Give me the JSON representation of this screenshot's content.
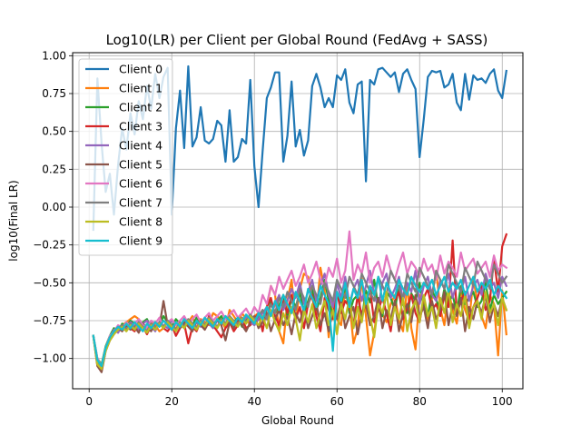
{
  "chart_data": {
    "type": "line",
    "title": "Log10(LR) per Client per Global Round (FedAvg + SASS)",
    "xlabel": "Global Round",
    "ylabel": "log10(Final LR)",
    "xlim": [
      -4,
      105
    ],
    "ylim": [
      -1.2,
      1.02
    ],
    "xticks": [
      0,
      20,
      40,
      60,
      80,
      100
    ],
    "yticks": [
      -1.0,
      -0.75,
      -0.5,
      -0.25,
      0.0,
      0.25,
      0.5,
      0.75,
      1.0
    ],
    "xtick_labels": [
      "0",
      "20",
      "40",
      "60",
      "80",
      "100"
    ],
    "ytick_labels": [
      "−1.00",
      "−0.75",
      "−0.50",
      "−0.25",
      "0.00",
      "0.25",
      "0.50",
      "0.75",
      "1.00"
    ],
    "grid": true,
    "legend_position": "top-left",
    "x_start": 1,
    "series": [
      {
        "name": "Client 0",
        "color": "#1f77b4",
        "values": [
          -0.15,
          0.85,
          0.42,
          0.1,
          0.22,
          -0.05,
          0.28,
          0.52,
          0.38,
          0.62,
          0.48,
          0.7,
          0.58,
          0.8,
          0.65,
          0.88,
          0.72,
          0.86,
          0.92,
          -0.05,
          0.52,
          0.77,
          0.39,
          0.93,
          0.4,
          0.46,
          0.66,
          0.44,
          0.42,
          0.45,
          0.57,
          0.54,
          0.3,
          0.64,
          0.3,
          0.33,
          0.45,
          0.42,
          0.84,
          0.27,
          0.0,
          0.37,
          0.72,
          0.79,
          0.89,
          0.89,
          0.3,
          0.47,
          0.83,
          0.4,
          0.51,
          0.34,
          0.44,
          0.8,
          0.88,
          0.79,
          0.66,
          0.72,
          0.66,
          0.87,
          0.84,
          0.91,
          0.69,
          0.62,
          0.81,
          0.83,
          0.17,
          0.84,
          0.81,
          0.91,
          0.92,
          0.89,
          0.86,
          0.89,
          0.76,
          0.88,
          0.91,
          0.84,
          0.78,
          0.33,
          0.58,
          0.86,
          0.9,
          0.89,
          0.9,
          0.79,
          0.81,
          0.88,
          0.69,
          0.64,
          0.88,
          0.71,
          0.87,
          0.84,
          0.85,
          0.82,
          0.88,
          0.91,
          0.77,
          0.72,
          0.9
        ]
      },
      {
        "name": "Client 1",
        "color": "#ff7f0e",
        "values": [
          -0.85,
          -1.05,
          -1.08,
          -0.95,
          -0.88,
          -0.82,
          -0.8,
          -0.78,
          -0.76,
          -0.74,
          -0.72,
          -0.74,
          -0.78,
          -0.8,
          -0.76,
          -0.78,
          -0.82,
          -0.8,
          -0.75,
          -0.78,
          -0.8,
          -0.77,
          -0.79,
          -0.76,
          -0.72,
          -0.8,
          -0.74,
          -0.76,
          -0.78,
          -0.7,
          -0.72,
          -0.75,
          -0.8,
          -0.68,
          -0.72,
          -0.76,
          -0.7,
          -0.74,
          -0.78,
          -0.72,
          -0.7,
          -0.74,
          -0.66,
          -0.52,
          -0.58,
          -0.82,
          -0.9,
          -0.62,
          -0.48,
          -0.76,
          -0.54,
          -0.44,
          -0.46,
          -0.6,
          -0.72,
          -0.4,
          -0.55,
          -0.86,
          -0.62,
          -0.74,
          -0.78,
          -0.52,
          -0.63,
          -0.9,
          -0.8,
          -0.47,
          -0.72,
          -0.98,
          -0.83,
          -0.62,
          -0.71,
          -0.76,
          -0.64,
          -0.58,
          -0.75,
          -0.82,
          -0.51,
          -0.8,
          -0.94,
          -0.58,
          -0.62,
          -0.76,
          -0.6,
          -0.42,
          -0.67,
          -0.78,
          -0.55,
          -0.68,
          -0.77,
          -0.55,
          -0.68,
          -0.75,
          -0.48,
          -0.62,
          -0.72,
          -0.8,
          -0.58,
          -0.64,
          -0.98,
          -0.55,
          -0.84
        ]
      },
      {
        "name": "Client 2",
        "color": "#2ca02c",
        "values": [
          -0.85,
          -1.0,
          -1.04,
          -0.92,
          -0.85,
          -0.8,
          -0.82,
          -0.77,
          -0.79,
          -0.75,
          -0.77,
          -0.79,
          -0.76,
          -0.74,
          -0.8,
          -0.76,
          -0.78,
          -0.72,
          -0.76,
          -0.79,
          -0.74,
          -0.77,
          -0.8,
          -0.75,
          -0.78,
          -0.73,
          -0.76,
          -0.79,
          -0.74,
          -0.77,
          -0.75,
          -0.72,
          -0.78,
          -0.74,
          -0.76,
          -0.73,
          -0.79,
          -0.75,
          -0.72,
          -0.78,
          -0.72,
          -0.68,
          -0.74,
          -0.62,
          -0.7,
          -0.65,
          -0.58,
          -0.72,
          -0.6,
          -0.66,
          -0.56,
          -0.7,
          -0.62,
          -0.54,
          -0.68,
          -0.6,
          -0.48,
          -0.62,
          -0.72,
          -0.56,
          -0.64,
          -0.52,
          -0.7,
          -0.61,
          -0.58,
          -0.74,
          -0.55,
          -0.63,
          -0.48,
          -0.66,
          -0.72,
          -0.56,
          -0.6,
          -0.68,
          -0.52,
          -0.64,
          -0.7,
          -0.57,
          -0.62,
          -0.5,
          -0.66,
          -0.72,
          -0.55,
          -0.61,
          -0.68,
          -0.54,
          -0.63,
          -0.58,
          -0.7,
          -0.52,
          -0.64,
          -0.6,
          -0.56,
          -0.66,
          -0.62,
          -0.5,
          -0.68,
          -0.58,
          -0.64,
          -0.6,
          -0.56
        ]
      },
      {
        "name": "Client 3",
        "color": "#d62728",
        "values": [
          -0.85,
          -1.02,
          -1.06,
          -0.94,
          -0.86,
          -0.83,
          -0.79,
          -0.81,
          -0.77,
          -0.8,
          -0.82,
          -0.76,
          -0.79,
          -0.84,
          -0.78,
          -0.81,
          -0.76,
          -0.8,
          -0.82,
          -0.78,
          -0.85,
          -0.8,
          -0.77,
          -0.9,
          -0.79,
          -0.82,
          -0.75,
          -0.8,
          -0.72,
          -0.78,
          -0.82,
          -0.86,
          -0.8,
          -0.76,
          -0.82,
          -0.78,
          -0.74,
          -0.8,
          -0.78,
          -0.74,
          -0.7,
          -0.82,
          -0.66,
          -0.6,
          -0.72,
          -0.78,
          -0.62,
          -0.7,
          -0.58,
          -0.74,
          -0.66,
          -0.8,
          -0.64,
          -0.58,
          -0.72,
          -0.82,
          -0.6,
          -0.68,
          -0.74,
          -0.56,
          -0.7,
          -0.62,
          -0.66,
          -0.78,
          -0.58,
          -0.72,
          -0.64,
          -0.54,
          -0.76,
          -0.68,
          -0.6,
          -0.7,
          -0.82,
          -0.62,
          -0.56,
          -0.74,
          -0.66,
          -0.58,
          -0.7,
          -0.76,
          -0.6,
          -0.54,
          -0.68,
          -0.64,
          -0.72,
          -0.58,
          -0.66,
          -0.22,
          -0.7,
          -0.62,
          -0.56,
          -0.74,
          -0.66,
          -0.6,
          -0.52,
          -0.68,
          -0.62,
          -0.34,
          -0.56,
          -0.26,
          -0.18
        ]
      },
      {
        "name": "Client 4",
        "color": "#9467bd",
        "values": [
          -0.85,
          -1.03,
          -1.05,
          -0.93,
          -0.87,
          -0.81,
          -0.83,
          -0.78,
          -0.8,
          -0.76,
          -0.78,
          -0.81,
          -0.77,
          -0.75,
          -0.79,
          -0.82,
          -0.76,
          -0.78,
          -0.8,
          -0.75,
          -0.77,
          -0.79,
          -0.74,
          -0.78,
          -0.81,
          -0.76,
          -0.79,
          -0.73,
          -0.77,
          -0.8,
          -0.75,
          -0.78,
          -0.72,
          -0.76,
          -0.79,
          -0.74,
          -0.77,
          -0.72,
          -0.76,
          -0.78,
          -0.74,
          -0.7,
          -0.66,
          -0.72,
          -0.64,
          -0.58,
          -0.68,
          -0.62,
          -0.54,
          -0.6,
          -0.5,
          -0.64,
          -0.56,
          -0.48,
          -0.62,
          -0.52,
          -0.44,
          -0.58,
          -0.66,
          -0.5,
          -0.6,
          -0.46,
          -0.64,
          -0.54,
          -0.48,
          -0.62,
          -0.52,
          -0.42,
          -0.58,
          -0.66,
          -0.5,
          -0.44,
          -0.6,
          -0.54,
          -0.46,
          -0.62,
          -0.5,
          -0.56,
          -0.42,
          -0.64,
          -0.52,
          -0.46,
          -0.58,
          -0.62,
          -0.48,
          -0.54,
          -0.44,
          -0.6,
          -0.5,
          -0.56,
          -0.46,
          -0.62,
          -0.52,
          -0.48,
          -0.58,
          -0.44,
          -0.54,
          -0.5,
          -0.6,
          -0.46,
          -0.52
        ]
      },
      {
        "name": "Client 5",
        "color": "#8c564b",
        "values": [
          -0.85,
          -1.05,
          -1.09,
          -0.95,
          -0.88,
          -0.84,
          -0.8,
          -0.82,
          -0.78,
          -0.81,
          -0.79,
          -0.83,
          -0.77,
          -0.8,
          -0.82,
          -0.76,
          -0.79,
          -0.62,
          -0.78,
          -0.81,
          -0.77,
          -0.8,
          -0.76,
          -0.79,
          -0.82,
          -0.75,
          -0.78,
          -0.81,
          -0.76,
          -0.79,
          -0.74,
          -0.78,
          -0.88,
          -0.76,
          -0.8,
          -0.74,
          -0.78,
          -0.82,
          -0.76,
          -0.72,
          -0.8,
          -0.76,
          -0.7,
          -0.82,
          -0.74,
          -0.68,
          -0.78,
          -0.72,
          -0.84,
          -0.7,
          -0.76,
          -0.66,
          -0.8,
          -0.72,
          -0.64,
          -0.78,
          -0.7,
          -0.82,
          -0.68,
          -0.74,
          -0.62,
          -0.8,
          -0.72,
          -0.66,
          -0.84,
          -0.7,
          -0.64,
          -0.78,
          -0.72,
          -0.6,
          -0.8,
          -0.68,
          -0.74,
          -0.62,
          -0.82,
          -0.7,
          -0.64,
          -0.76,
          -0.58,
          -0.72,
          -0.66,
          -0.8,
          -0.62,
          -0.74,
          -0.68,
          -0.56,
          -0.78,
          -0.64,
          -0.72,
          -0.6,
          -0.82,
          -0.66,
          -0.74,
          -0.62,
          -0.7,
          -0.58,
          -0.76,
          -0.64,
          -0.72,
          -0.6,
          -0.68
        ]
      },
      {
        "name": "Client 6",
        "color": "#e377c2",
        "values": [
          -0.85,
          -1.0,
          -1.05,
          -0.93,
          -0.85,
          -0.82,
          -0.78,
          -0.8,
          -0.76,
          -0.79,
          -0.77,
          -0.74,
          -0.78,
          -0.8,
          -0.75,
          -0.77,
          -0.73,
          -0.79,
          -0.76,
          -0.74,
          -0.78,
          -0.75,
          -0.72,
          -0.77,
          -0.74,
          -0.71,
          -0.76,
          -0.73,
          -0.7,
          -0.75,
          -0.72,
          -0.69,
          -0.74,
          -0.71,
          -0.68,
          -0.73,
          -0.7,
          -0.67,
          -0.72,
          -0.66,
          -0.7,
          -0.58,
          -0.64,
          -0.52,
          -0.58,
          -0.46,
          -0.54,
          -0.48,
          -0.42,
          -0.52,
          -0.46,
          -0.38,
          -0.5,
          -0.44,
          -0.36,
          -0.48,
          -0.52,
          -0.4,
          -0.46,
          -0.34,
          -0.5,
          -0.42,
          -0.16,
          -0.48,
          -0.38,
          -0.44,
          -0.3,
          -0.5,
          -0.4,
          -0.36,
          -0.46,
          -0.32,
          -0.42,
          -0.48,
          -0.38,
          -0.3,
          -0.44,
          -0.36,
          -0.4,
          -0.46,
          -0.34,
          -0.42,
          -0.38,
          -0.48,
          -0.32,
          -0.44,
          -0.36,
          -0.4,
          -0.46,
          -0.3,
          -0.42,
          -0.38,
          -0.34,
          -0.44,
          -0.4,
          -0.36,
          -0.46,
          -0.32,
          -0.42,
          -0.38,
          -0.4
        ]
      },
      {
        "name": "Client 7",
        "color": "#7f7f7f",
        "values": [
          -0.85,
          -1.02,
          -1.06,
          -0.94,
          -0.87,
          -0.83,
          -0.8,
          -0.78,
          -0.81,
          -0.77,
          -0.8,
          -0.76,
          -0.79,
          -0.82,
          -0.77,
          -0.8,
          -0.76,
          -0.79,
          -0.75,
          -0.78,
          -0.81,
          -0.76,
          -0.79,
          -0.74,
          -0.77,
          -0.8,
          -0.75,
          -0.78,
          -0.73,
          -0.76,
          -0.79,
          -0.74,
          -0.77,
          -0.72,
          -0.75,
          -0.78,
          -0.73,
          -0.76,
          -0.71,
          -0.74,
          -0.72,
          -0.68,
          -0.74,
          -0.64,
          -0.7,
          -0.6,
          -0.66,
          -0.56,
          -0.62,
          -0.68,
          -0.54,
          -0.6,
          -0.66,
          -0.52,
          -0.58,
          -0.64,
          -0.5,
          -0.56,
          -0.62,
          -0.48,
          -0.54,
          -0.6,
          -0.46,
          -0.52,
          -0.58,
          -0.44,
          -0.5,
          -0.56,
          -0.62,
          -0.46,
          -0.52,
          -0.58,
          -0.42,
          -0.48,
          -0.54,
          -0.6,
          -0.44,
          -0.5,
          -0.56,
          -0.4,
          -0.46,
          -0.52,
          -0.58,
          -0.42,
          -0.48,
          -0.54,
          -0.38,
          -0.44,
          -0.5,
          -0.56,
          -0.4,
          -0.46,
          -0.52,
          -0.36,
          -0.42,
          -0.48,
          -0.54,
          -0.38,
          -0.44,
          -0.5,
          -0.46
        ]
      },
      {
        "name": "Client 8",
        "color": "#bcbd22",
        "values": [
          -0.85,
          -1.04,
          -1.07,
          -0.95,
          -0.88,
          -0.84,
          -0.81,
          -0.79,
          -0.82,
          -0.78,
          -0.81,
          -0.77,
          -0.8,
          -0.83,
          -0.78,
          -0.81,
          -0.77,
          -0.8,
          -0.76,
          -0.79,
          -0.82,
          -0.77,
          -0.8,
          -0.75,
          -0.78,
          -0.81,
          -0.76,
          -0.79,
          -0.74,
          -0.77,
          -0.8,
          -0.75,
          -0.78,
          -0.73,
          -0.76,
          -0.79,
          -0.74,
          -0.77,
          -0.72,
          -0.75,
          -0.78,
          -0.72,
          -0.8,
          -0.68,
          -0.76,
          -0.82,
          -0.7,
          -0.78,
          -0.66,
          -0.74,
          -0.88,
          -0.68,
          -0.76,
          -0.64,
          -0.8,
          -0.7,
          -0.62,
          -0.78,
          -0.68,
          -0.84,
          -0.64,
          -0.74,
          -0.6,
          -0.8,
          -0.66,
          -0.76,
          -0.58,
          -0.72,
          -0.86,
          -0.64,
          -0.7,
          -0.56,
          -0.78,
          -0.66,
          -0.74,
          -0.6,
          -0.82,
          -0.68,
          -0.62,
          -0.76,
          -0.58,
          -0.72,
          -0.66,
          -0.8,
          -0.6,
          -0.7,
          -0.54,
          -0.76,
          -0.64,
          -0.72,
          -0.58,
          -0.8,
          -0.66,
          -0.62,
          -0.74,
          -0.56,
          -0.7,
          -0.64,
          -0.78,
          -0.6,
          -0.68
        ]
      },
      {
        "name": "Client 9",
        "color": "#17becf",
        "values": [
          -0.85,
          -1.01,
          -1.05,
          -0.93,
          -0.86,
          -0.82,
          -0.79,
          -0.81,
          -0.77,
          -0.8,
          -0.76,
          -0.79,
          -0.82,
          -0.77,
          -0.8,
          -0.76,
          -0.79,
          -0.75,
          -0.78,
          -0.81,
          -0.76,
          -0.79,
          -0.74,
          -0.77,
          -0.8,
          -0.75,
          -0.78,
          -0.73,
          -0.76,
          -0.79,
          -0.74,
          -0.77,
          -0.72,
          -0.75,
          -0.78,
          -0.73,
          -0.76,
          -0.71,
          -0.74,
          -0.77,
          -0.7,
          -0.74,
          -0.66,
          -0.72,
          -0.62,
          -0.68,
          -0.58,
          -0.64,
          -0.7,
          -0.56,
          -0.62,
          -0.68,
          -0.54,
          -0.6,
          -0.66,
          -0.52,
          -0.58,
          -0.64,
          -0.95,
          -0.56,
          -0.62,
          -0.5,
          -0.66,
          -0.54,
          -0.6,
          -0.48,
          -0.64,
          -0.52,
          -0.58,
          -0.46,
          -0.62,
          -0.5,
          -0.56,
          -0.6,
          -0.48,
          -0.54,
          -0.58,
          -0.46,
          -0.52,
          -0.56,
          -0.5,
          -0.54,
          -0.48,
          -0.58,
          -0.52,
          -0.46,
          -0.56,
          -0.5,
          -0.54,
          -0.48,
          -0.58,
          -0.52,
          -0.46,
          -0.56,
          -0.5,
          -0.54,
          -0.48,
          -0.58,
          -0.52,
          -0.56,
          -0.6
        ]
      }
    ]
  }
}
